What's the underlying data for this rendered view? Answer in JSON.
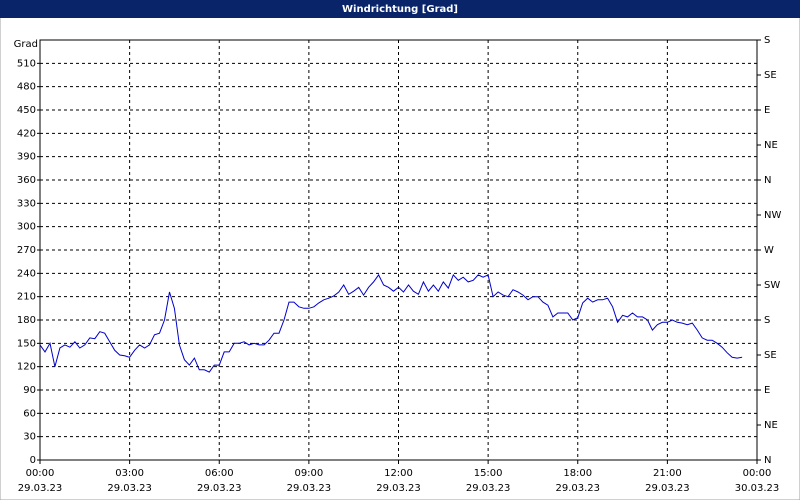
{
  "chart_data": {
    "type": "line",
    "title": "Windrichtung [Grad]",
    "y_label": "Grad",
    "color": "#0000cc",
    "grid": true,
    "xlim": [
      0,
      1440
    ],
    "xticks": [
      {
        "value": 0,
        "label": "00:00"
      },
      {
        "value": 180,
        "label": "03:00"
      },
      {
        "value": 360,
        "label": "06:00"
      },
      {
        "value": 540,
        "label": "09:00"
      },
      {
        "value": 720,
        "label": "12:00"
      },
      {
        "value": 900,
        "label": "15:00"
      },
      {
        "value": 1080,
        "label": "18:00"
      },
      {
        "value": 1260,
        "label": "21:00"
      },
      {
        "value": 1440,
        "label": "00:00"
      }
    ],
    "xtick_dates": [
      "29.03.23",
      "29.03.23",
      "29.03.23",
      "29.03.23",
      "29.03.23",
      "29.03.23",
      "29.03.23",
      "29.03.23",
      "30.03.23"
    ],
    "ylim": [
      0,
      540
    ],
    "yticks": [
      0,
      30,
      60,
      90,
      120,
      150,
      180,
      210,
      240,
      270,
      300,
      330,
      360,
      390,
      420,
      450,
      480,
      510
    ],
    "y2lim": [
      0,
      540
    ],
    "y2ticks": [
      {
        "value": 0,
        "label": "N"
      },
      {
        "value": 45,
        "label": "NE"
      },
      {
        "value": 90,
        "label": "E"
      },
      {
        "value": 135,
        "label": "SE"
      },
      {
        "value": 180,
        "label": "S"
      },
      {
        "value": 225,
        "label": "SW"
      },
      {
        "value": 270,
        "label": "W"
      },
      {
        "value": 315,
        "label": "NW"
      },
      {
        "value": 360,
        "label": "N"
      },
      {
        "value": 405,
        "label": "NE"
      },
      {
        "value": 450,
        "label": "E"
      },
      {
        "value": 495,
        "label": "SE"
      },
      {
        "value": 540,
        "label": "S"
      }
    ],
    "x": [
      0,
      10,
      20,
      30,
      40,
      50,
      60,
      70,
      80,
      90,
      100,
      110,
      120,
      130,
      140,
      150,
      160,
      170,
      180,
      190,
      200,
      210,
      220,
      230,
      240,
      250,
      260,
      270,
      280,
      290,
      300,
      310,
      320,
      330,
      340,
      350,
      360,
      370,
      380,
      390,
      400,
      410,
      420,
      430,
      440,
      450,
      460,
      470,
      480,
      490,
      500,
      510,
      520,
      530,
      540,
      550,
      560,
      570,
      580,
      590,
      600,
      610,
      620,
      630,
      640,
      650,
      660,
      670,
      680,
      690,
      700,
      710,
      720,
      730,
      740,
      750,
      760,
      770,
      780,
      790,
      800,
      810,
      820,
      830,
      840,
      850,
      860,
      870,
      880,
      890,
      900,
      910,
      920,
      930,
      940,
      950,
      960,
      970,
      980,
      990,
      1000,
      1010,
      1020,
      1030,
      1040,
      1050,
      1060,
      1070,
      1080,
      1090,
      1100,
      1110,
      1120,
      1130,
      1140,
      1150,
      1160,
      1170,
      1180,
      1190,
      1200,
      1210,
      1220,
      1230,
      1240,
      1250,
      1260,
      1270,
      1280,
      1290,
      1300,
      1310,
      1320,
      1330,
      1340,
      1350,
      1360,
      1370,
      1380,
      1390,
      1400,
      1410
    ],
    "values": [
      148,
      139,
      150,
      120,
      144,
      148,
      145,
      152,
      144,
      148,
      157,
      156,
      165,
      163,
      152,
      141,
      135,
      134,
      132,
      141,
      148,
      144,
      148,
      161,
      163,
      180,
      216,
      195,
      148,
      129,
      122,
      131,
      116,
      116,
      113,
      122,
      122,
      139,
      139,
      150,
      150,
      152,
      148,
      150,
      148,
      148,
      154,
      163,
      163,
      180,
      203,
      203,
      197,
      195,
      195,
      197,
      202,
      206,
      208,
      211,
      216,
      225,
      213,
      217,
      222,
      212,
      222,
      229,
      238,
      225,
      222,
      217,
      222,
      216,
      225,
      217,
      213,
      229,
      217,
      225,
      217,
      229,
      221,
      238,
      231,
      235,
      229,
      231,
      238,
      235,
      238,
      210,
      216,
      212,
      210,
      219,
      216,
      212,
      206,
      210,
      210,
      203,
      199,
      184,
      189,
      189,
      189,
      180,
      183,
      202,
      208,
      203,
      206,
      206,
      208,
      197,
      177,
      186,
      184,
      189,
      184,
      184,
      180,
      167,
      174,
      177,
      177,
      180,
      177,
      176,
      174,
      176,
      167,
      157,
      154,
      154,
      150,
      145,
      138,
      132,
      131,
      132
    ]
  }
}
